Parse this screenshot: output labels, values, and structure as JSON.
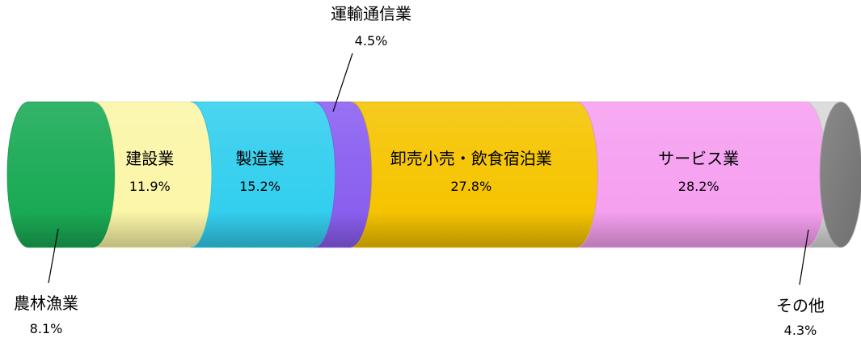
{
  "chart_data": {
    "type": "bar",
    "orientation": "horizontal-stacked-100",
    "series": [
      {
        "name": "農林漁業",
        "value": 8.1,
        "label": "8.1%",
        "color": "#1aaa55"
      },
      {
        "name": "建設業",
        "value": 11.9,
        "label": "11.9%",
        "color": "#fbf6a8"
      },
      {
        "name": "製造業",
        "value": 15.2,
        "label": "15.2%",
        "color": "#33cfee"
      },
      {
        "name": "運輸通信業",
        "value": 4.5,
        "label": "4.5%",
        "color": "#8a5ff0"
      },
      {
        "name": "卸売小売・飲食宿泊業",
        "value": 27.8,
        "label": "27.8%",
        "color": "#f5c400"
      },
      {
        "name": "サービス業",
        "value": 28.2,
        "label": "28.2%",
        "color": "#f6a0f0"
      },
      {
        "name": "その他",
        "value": 4.3,
        "label": "4.3%",
        "color": "#d8d8d8"
      }
    ],
    "total": 100
  }
}
